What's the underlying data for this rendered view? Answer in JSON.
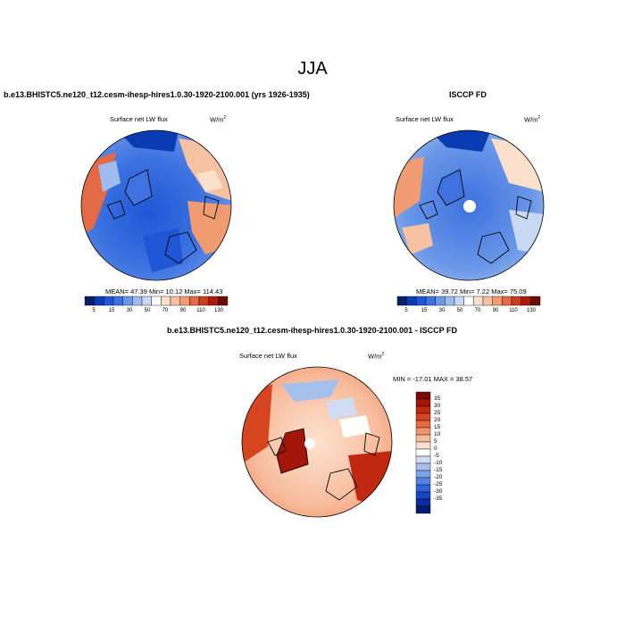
{
  "figure": {
    "season": "JJA"
  },
  "panels": [
    {
      "title": "b.e13.BHISTC5.ne120_t12.cesm-ihesp-hires1.0.30-1920-2100.001 (yrs 1926-1935)",
      "variable": "Surface net LW flux",
      "units_base": "W/m",
      "units_exp": "2",
      "stats": "MEAN=  47.39  Min=  10.12  Max= 114.43"
    },
    {
      "title": "ISCCP FD",
      "variable": "Surface net LW flux",
      "units_base": "W/m",
      "units_exp": "2",
      "stats": "MEAN=  39.72  Min=   7.22  Max=  75.09"
    },
    {
      "title": "b.e13.BHISTC5.ne120_t12.cesm-ihesp-hires1.0.30-1920-2100.001 - ISCCP FD",
      "variable": "Surface net LW flux",
      "units_base": "W/m",
      "units_exp": "2",
      "stats": "MIN = -17.01  MAX =  38.57"
    }
  ],
  "colorbar_abs": {
    "labels": [
      "5",
      "15",
      "30",
      "50",
      "70",
      "90",
      "110",
      "130"
    ],
    "colors": [
      "#08206b",
      "#0b3bb3",
      "#1f56d6",
      "#3d72e0",
      "#6a97e8",
      "#9fbcee",
      "#c9d8f3",
      "#ffffff",
      "#fbe0cc",
      "#f7c2a2",
      "#f19b73",
      "#e46a45",
      "#cc3d1f",
      "#a81c0c",
      "#6e0a04"
    ]
  },
  "colorbar_diff": {
    "labels": [
      "35",
      "30",
      "25",
      "20",
      "15",
      "10",
      "5",
      "0",
      "-5",
      "-10",
      "-15",
      "-20",
      "-25",
      "-30",
      "-35"
    ],
    "colors": [
      "#7a0a03",
      "#a31508",
      "#c0280f",
      "#d64520",
      "#e66a40",
      "#f19570",
      "#f8bc9c",
      "#fde2cf",
      "#ffffff",
      "#cfdcf4",
      "#a6c0ee",
      "#7ea2e8",
      "#5582e2",
      "#2f62dc",
      "#1744c4",
      "#0c2ba0",
      "#061b70"
    ]
  }
}
